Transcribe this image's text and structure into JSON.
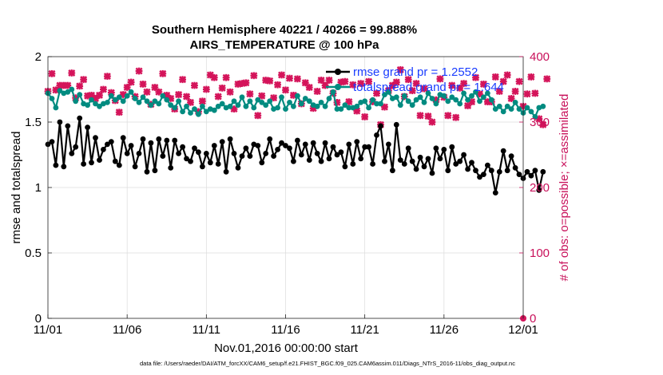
{
  "chart_data": {
    "type": "line",
    "title": "Southern Hemisphere 40221 / 40266 = 99.888%",
    "subtitle": "AIRS_TEMPERATURE @ 100 hPa",
    "xlabel": "Nov.01,2016 00:00:00 start",
    "ylabel": "rmse and totalspread",
    "ylabel_right": "# of obs: o=possible; ×=assimilated",
    "x_ticks": [
      "11/01",
      "11/06",
      "11/11",
      "11/16",
      "11/21",
      "11/26",
      "12/01"
    ],
    "x_range_days": [
      0,
      30
    ],
    "ylim": [
      0,
      2
    ],
    "y_ticks": [
      "0",
      "0.5",
      "1",
      "1.5",
      "2"
    ],
    "ylim_right": [
      0,
      400
    ],
    "y_ticks_right": [
      "0",
      "100",
      "200",
      "300",
      "400"
    ],
    "grid": true,
    "legend_position": "top-right",
    "step_days": 0.25,
    "series": [
      {
        "name": "rmse grand pr = 1.2552",
        "color": "#000000",
        "axis": "left",
        "values": [
          1.33,
          1.35,
          1.17,
          1.5,
          1.16,
          1.47,
          1.26,
          1.31,
          1.53,
          1.18,
          1.46,
          1.19,
          1.38,
          1.21,
          1.29,
          1.33,
          1.35,
          1.2,
          1.17,
          1.38,
          1.26,
          1.32,
          1.16,
          1.26,
          1.37,
          1.12,
          1.34,
          1.13,
          1.37,
          1.24,
          1.36,
          1.15,
          1.36,
          1.26,
          1.31,
          1.22,
          1.2,
          1.3,
          1.27,
          1.16,
          1.26,
          1.19,
          1.32,
          1.18,
          1.35,
          1.12,
          1.37,
          1.26,
          1.15,
          1.24,
          1.3,
          1.24,
          1.33,
          1.32,
          1.19,
          1.26,
          1.37,
          1.24,
          1.29,
          1.34,
          1.32,
          1.3,
          1.2,
          1.36,
          1.25,
          1.33,
          1.21,
          1.34,
          1.26,
          1.2,
          1.34,
          1.22,
          1.31,
          1.25,
          1.27,
          1.16,
          1.33,
          1.18,
          1.35,
          1.22,
          1.31,
          1.31,
          1.18,
          1.4,
          1.47,
          1.2,
          1.33,
          1.13,
          1.48,
          1.21,
          1.18,
          1.3,
          1.2,
          1.14,
          1.23,
          1.16,
          1.22,
          1.11,
          1.3,
          1.22,
          1.29,
          1.13,
          1.31,
          1.18,
          1.2,
          1.25,
          1.14,
          1.19,
          1.13,
          1.08,
          1.1,
          1.17,
          1.13,
          0.96,
          1.12,
          1.28,
          1.13,
          1.24,
          1.15,
          1.1,
          1.07,
          1.12,
          1.09,
          1.13,
          0.98,
          1.12
        ],
        "note": "values listed at 0.25-day steps starting 11/01"
      },
      {
        "name": "totalspread grand pr = 1.644",
        "color": "#008b80",
        "axis": "left",
        "values": [
          1.72,
          1.68,
          1.61,
          1.74,
          1.72,
          1.73,
          1.75,
          1.66,
          1.71,
          1.64,
          1.63,
          1.67,
          1.64,
          1.62,
          1.64,
          1.65,
          1.7,
          1.67,
          1.69,
          1.66,
          1.7,
          1.73,
          1.68,
          1.65,
          1.69,
          1.66,
          1.63,
          1.66,
          1.64,
          1.7,
          1.67,
          1.63,
          1.61,
          1.66,
          1.58,
          1.62,
          1.57,
          1.6,
          1.56,
          1.62,
          1.58,
          1.6,
          1.59,
          1.62,
          1.64,
          1.61,
          1.62,
          1.66,
          1.63,
          1.69,
          1.62,
          1.66,
          1.61,
          1.67,
          1.65,
          1.63,
          1.66,
          1.6,
          1.61,
          1.69,
          1.6,
          1.65,
          1.62,
          1.7,
          1.64,
          1.68,
          1.66,
          1.63,
          1.62,
          1.65,
          1.62,
          1.68,
          1.73,
          1.6,
          1.6,
          1.63,
          1.61,
          1.61,
          1.62,
          1.65,
          1.66,
          1.61,
          1.67,
          1.64,
          1.64,
          1.71,
          1.73,
          1.68,
          1.69,
          1.63,
          1.7,
          1.66,
          1.63,
          1.67,
          1.69,
          1.65,
          1.72,
          1.68,
          1.64,
          1.71,
          1.7,
          1.66,
          1.69,
          1.67,
          1.64,
          1.72,
          1.67,
          1.7,
          1.73,
          1.66,
          1.69,
          1.72,
          1.67,
          1.6,
          1.62,
          1.58,
          1.62,
          1.6,
          1.65,
          1.6,
          1.57,
          1.61,
          1.58,
          1.54,
          1.61,
          1.62
        ]
      },
      {
        "name": "obs assimilated",
        "color": "#d4145a",
        "axis": "right",
        "values": [
          347,
          374,
          349,
          356,
          356,
          356,
          375,
          337,
          355,
          365,
          340,
          341,
          336,
          341,
          350,
          370,
          345,
          333,
          315,
          342,
          353,
          361,
          339,
          378,
          358,
          346,
          327,
          353,
          346,
          374,
          341,
          336,
          320,
          342,
          365,
          339,
          330,
          356,
          316,
          332,
          350,
          372,
          368,
          339,
          352,
          368,
          346,
          320,
          358,
          359,
          360,
          343,
          371,
          310,
          340,
          364,
          363,
          337,
          357,
          372,
          349,
          367,
          341,
          366,
          328,
          360,
          353,
          321,
          347,
          364,
          356,
          364,
          344,
          330,
          361,
          362,
          331,
          357,
          317,
          359,
          308,
          362,
          331,
          344,
          296,
          323,
          348,
          356,
          361,
          380,
          339,
          365,
          348,
          359,
          310,
          351,
          309,
          300,
          334,
          366,
          338,
          310,
          356,
          307,
          352,
          359,
          325,
          331,
          368,
          343,
          358,
          331,
          331,
          369,
          347,
          362,
          372,
          336,
          347,
          362,
          324,
          343,
          369,
          344,
          305,
          296,
          366
        ],
        "marker": "x"
      },
      {
        "name": "obs possible",
        "color": "#d4145a",
        "axis": "right",
        "marker": "o",
        "values": [
          0
        ]
      }
    ]
  },
  "footer": {
    "datafile": "data file: /Users/raeder/DAI/ATM_forcXX/CAM6_setup/f.e21.FHIST_BGC.f09_025.CAM6assim.011/Diags_NTrS_2016-11/obs_diag_output.nc"
  }
}
